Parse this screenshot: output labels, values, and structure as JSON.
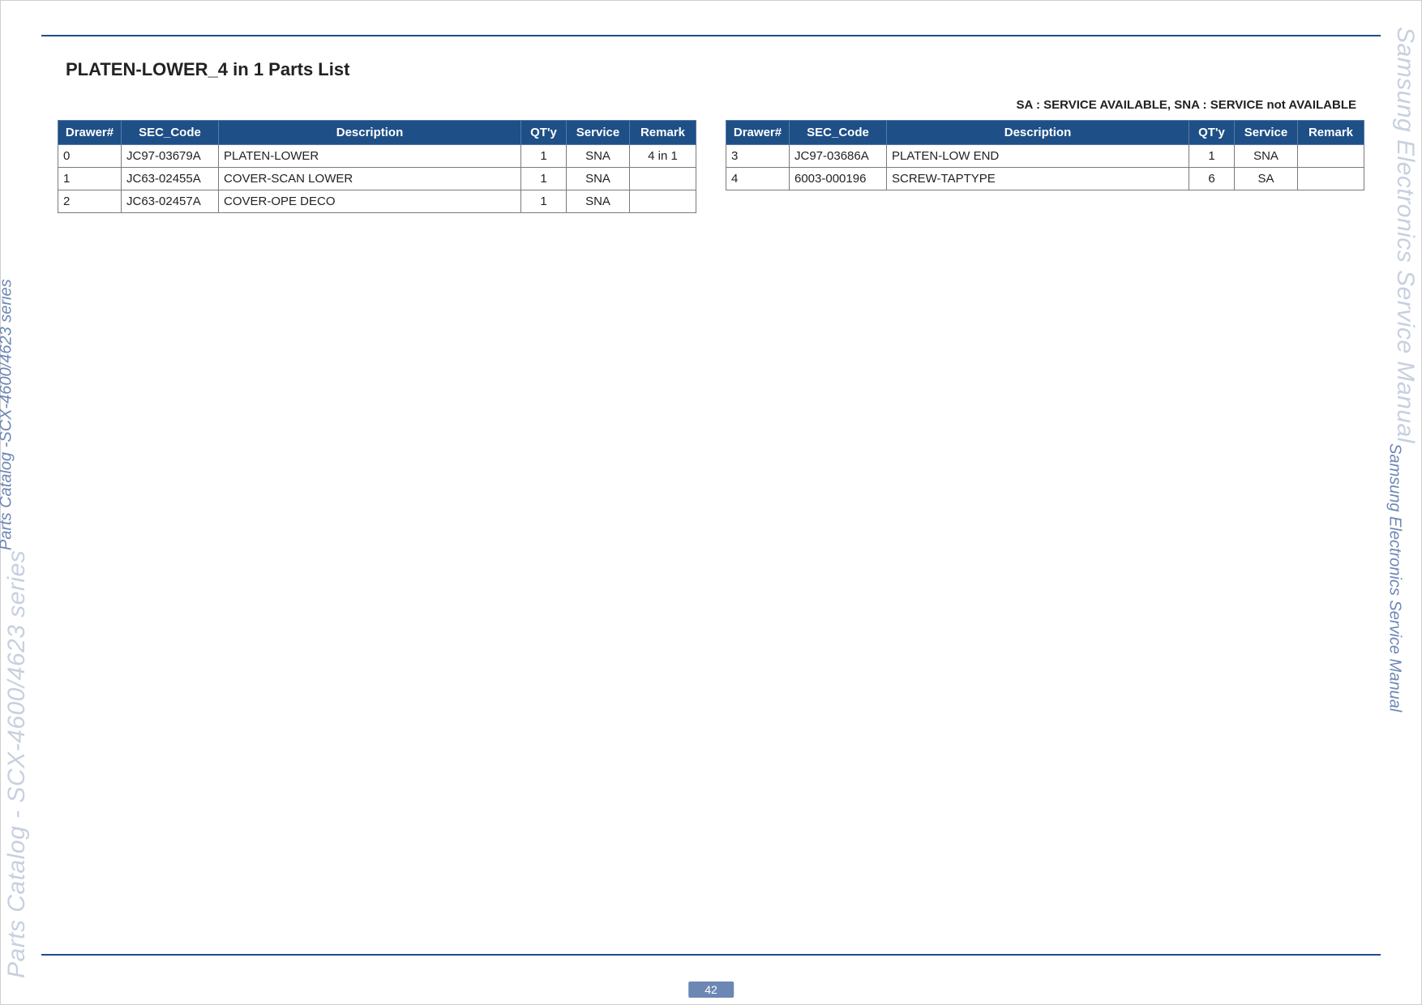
{
  "page": {
    "title": "PLATEN-LOWER_4 in 1 Parts List",
    "legend": "SA : SERVICE AVAILABLE, SNA : SERVICE not AVAILABLE",
    "number": "42"
  },
  "side": {
    "left_faint": "Parts Catalog - SCX-4600/4623 series",
    "left_sharp": "Parts Catalog -SCX-4600/4623 series",
    "right_faint": "Samsung Electronics  Service Manual",
    "right_sharp": "Samsung Electronics  Service Manual"
  },
  "columns": {
    "drawer": "Drawer#",
    "sec_code": "SEC_Code",
    "description": "Description",
    "qty": "QT'y",
    "service": "Service",
    "remark": "Remark"
  },
  "table_left": {
    "rows": [
      {
        "drawer": "0",
        "code": "JC97-03679A",
        "desc": "PLATEN-LOWER",
        "qty": "1",
        "service": "SNA",
        "remark": "4 in 1"
      },
      {
        "drawer": "1",
        "code": "JC63-02455A",
        "desc": "COVER-SCAN LOWER",
        "qty": "1",
        "service": "SNA",
        "remark": ""
      },
      {
        "drawer": "2",
        "code": "JC63-02457A",
        "desc": "COVER-OPE DECO",
        "qty": "1",
        "service": "SNA",
        "remark": ""
      }
    ]
  },
  "table_right": {
    "rows": [
      {
        "drawer": "3",
        "code": "JC97-03686A",
        "desc": "PLATEN-LOW END",
        "qty": "1",
        "service": "SNA",
        "remark": ""
      },
      {
        "drawer": "4",
        "code": "6003-000196",
        "desc": "SCREW-TAPTYPE",
        "qty": "6",
        "service": "SA",
        "remark": ""
      }
    ]
  },
  "style": {
    "header_bg": "#1e4f87",
    "header_fg": "#ffffff",
    "accent": "#6d87b5",
    "border": "#7a7a7a",
    "side_faint": "#c7d0df"
  }
}
